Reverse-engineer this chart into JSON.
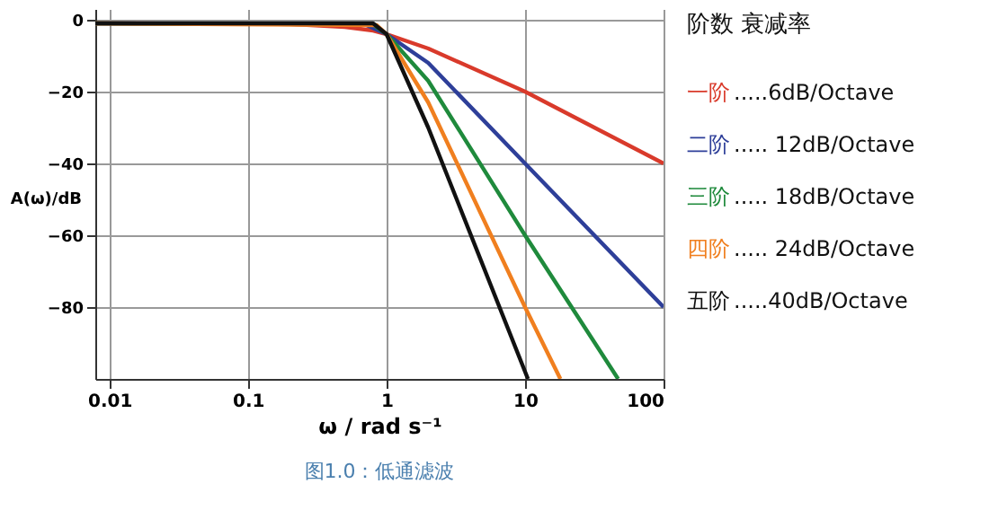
{
  "chart_data": {
    "type": "line",
    "xlabel": "ω / rad s⁻¹",
    "ylabel": "A(ω)/dB",
    "legend_title": "阶数      衰减率",
    "log": "x",
    "xlim": [
      0.0079,
      100
    ],
    "xticks": [
      0.01,
      0.1,
      1,
      10,
      100
    ],
    "ylim": [
      -100,
      3
    ],
    "yticks": [
      {
        "value": 0,
        "label": "0"
      },
      -20,
      -40,
      -60,
      -80
    ],
    "grid": true,
    "legend": "right",
    "line_style": "solid",
    "marker": "none",
    "series": [
      {
        "name": "一阶",
        "color": "#d93a2b",
        "x": [
          0.0079,
          0.2,
          0.5,
          0.8,
          1,
          2,
          10,
          100
        ],
        "values": [
          -1,
          -1.2,
          -2,
          -3,
          -4,
          -8,
          -20,
          -40
        ]
      },
      {
        "name": "二阶",
        "color": "#2e3f99",
        "x": [
          0.0079,
          0.7,
          1,
          2,
          10,
          100
        ],
        "values": [
          -1,
          -1.3,
          -4,
          -12,
          -40,
          -80
        ]
      },
      {
        "name": "三阶",
        "color": "#1f8a3c",
        "x": [
          0.0079,
          0.8,
          1,
          2,
          10,
          47
        ],
        "values": [
          -1,
          -1.3,
          -4,
          -17,
          -60,
          -100
        ]
      },
      {
        "name": "四阶",
        "color": "#f07f1f",
        "x": [
          0.0079,
          0.85,
          1,
          2,
          10,
          18
        ],
        "values": [
          -1,
          -1.5,
          -4,
          -23,
          -80,
          -100
        ]
      },
      {
        "name": "五阶",
        "color": "#111111",
        "x": [
          0.0079,
          0.8,
          1,
          2,
          10.5
        ],
        "values": [
          -1,
          -1,
          -4,
          -30,
          -100
        ]
      }
    ],
    "annotations": [
      ".....6dB/Octave",
      "..... 12dB/Octave",
      "..... 18dB/Octave",
      "..... 24dB/Octave",
      ".....40dB/Octave",
      "图1.0：低通滤波"
    ]
  }
}
